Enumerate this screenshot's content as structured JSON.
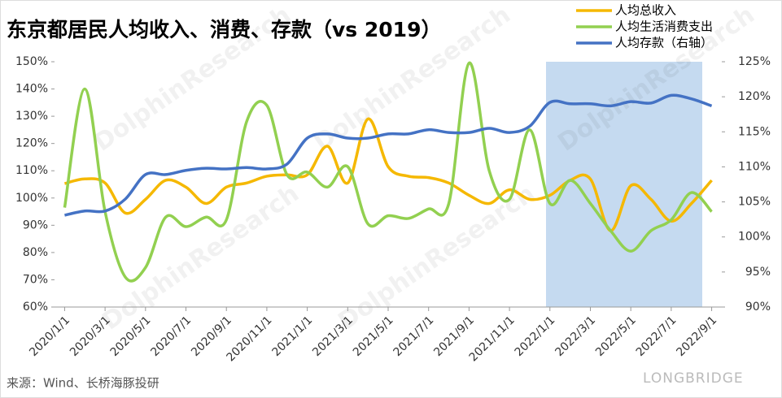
{
  "chart_data": {
    "type": "line",
    "title": "东京都居民人均收入、消费、存款（vs 2019）",
    "source": "来源：Wind、长桥海豚投研",
    "watermark": "DolphinResearch",
    "logo": "LONGBRIDGE",
    "categories": [
      "2020/1/1",
      null,
      "2020/3/1",
      null,
      "2020/5/1",
      null,
      "2020/7/1",
      null,
      "2020/9/1",
      null,
      "2020/11/1",
      null,
      "2021/1/1",
      null,
      "2021/3/1",
      null,
      "2021/5/1",
      null,
      "2021/7/1",
      null,
      "2021/9/1",
      null,
      "2021/11/1",
      null,
      "2022/1/1",
      null,
      "2022/3/1",
      null,
      "2022/5/1",
      null,
      "2022/7/1",
      null,
      "2022/9/1"
    ],
    "series": [
      {
        "name": "人均总收入",
        "color": "#f5b800",
        "values": [
          105.3,
          107,
          105.5,
          94.5,
          99.5,
          106.5,
          104,
          98,
          104,
          105.5,
          108,
          108.5,
          108.5,
          119,
          105.5,
          129,
          111.5,
          108,
          107.5,
          105.5,
          101,
          98,
          103,
          99.5,
          101,
          106.5,
          107,
          88,
          104.5,
          99.5,
          91.5,
          98,
          106.5
        ]
      },
      {
        "name": "人均生活消费支出",
        "color": "#92d050",
        "values": [
          96.5,
          140,
          95,
          71,
          74.5,
          93,
          89.5,
          93,
          92,
          128,
          134,
          108.5,
          109.5,
          104,
          111.5,
          90.5,
          93.5,
          92.5,
          96,
          98,
          149.5,
          110,
          99.5,
          125,
          98,
          106.5,
          98,
          88,
          80.5,
          88,
          92,
          102,
          95
        ]
      },
      {
        "name": "人均存款（右轴）",
        "color": "#4472c4",
        "axis": "y2",
        "values": [
          103.1,
          103.7,
          103.7,
          105.4,
          108.9,
          108.9,
          109.5,
          109.8,
          109.7,
          109.9,
          109.7,
          110.4,
          114.1,
          114.7,
          114.1,
          114.1,
          114.7,
          114.7,
          115.3,
          114.9,
          114.9,
          115.5,
          114.9,
          115.8,
          119.2,
          119,
          119,
          118.7,
          119.3,
          119.1,
          120.2,
          119.7,
          118.7
        ]
      }
    ],
    "ylim": [
      60,
      150
    ],
    "yticks": [
      {
        "value": 60,
        "label": "60%"
      },
      {
        "value": 70,
        "label": "70%"
      },
      {
        "value": 80,
        "label": "80%"
      },
      {
        "value": 90,
        "label": "90%"
      },
      {
        "value": 100,
        "label": "100%"
      },
      {
        "value": 110,
        "label": "110%"
      },
      {
        "value": 120,
        "label": "120%"
      },
      {
        "value": 130,
        "label": "130%"
      },
      {
        "value": 140,
        "label": "140%"
      },
      {
        "value": 150,
        "label": "150%"
      }
    ],
    "y2lim": [
      90,
      125
    ],
    "y2ticks": [
      {
        "value": 90,
        "label": "90%"
      },
      {
        "value": 95,
        "label": "95%"
      },
      {
        "value": 100,
        "label": "100%"
      },
      {
        "value": 105,
        "label": "105%"
      },
      {
        "value": 110,
        "label": "110%"
      },
      {
        "value": 115,
        "label": "115%"
      },
      {
        "value": 120,
        "label": "120%"
      },
      {
        "value": 125,
        "label": "125%"
      }
    ],
    "grid": false,
    "legend": "top-right"
  }
}
